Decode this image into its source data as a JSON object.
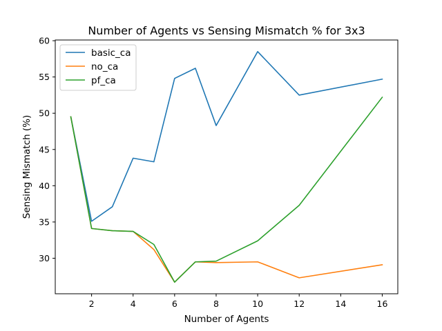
{
  "chart_data": {
    "type": "line",
    "title": "Number of Agents vs Sensing Mismatch % for 3x3",
    "xlabel": "Number of Agents",
    "ylabel": "Sensing Mismatch (%)",
    "xlim": [
      0.25,
      16.75
    ],
    "ylim": [
      25.1,
      60.1
    ],
    "xticks": [
      2,
      4,
      6,
      8,
      10,
      12,
      14,
      16
    ],
    "yticks": [
      30,
      35,
      40,
      45,
      50,
      55,
      60
    ],
    "grid": false,
    "legend_position": "top-left",
    "x": [
      1,
      2,
      3,
      4,
      5,
      6,
      7,
      8,
      10,
      12,
      16
    ],
    "series": [
      {
        "name": "basic_ca",
        "color": "#1f77b4",
        "values": [
          49.5,
          35.1,
          37.1,
          43.8,
          43.3,
          54.8,
          56.2,
          48.3,
          58.5,
          52.5,
          54.7
        ]
      },
      {
        "name": "no_ca",
        "color": "#ff7f0e",
        "values": [
          49.5,
          34.1,
          33.8,
          33.7,
          31.2,
          26.7,
          29.5,
          29.4,
          29.5,
          27.3,
          29.1
        ]
      },
      {
        "name": "pf_ca",
        "color": "#2ca02c",
        "values": [
          49.5,
          34.1,
          33.8,
          33.7,
          31.9,
          26.7,
          29.5,
          29.6,
          32.4,
          37.3,
          52.2
        ]
      }
    ]
  }
}
